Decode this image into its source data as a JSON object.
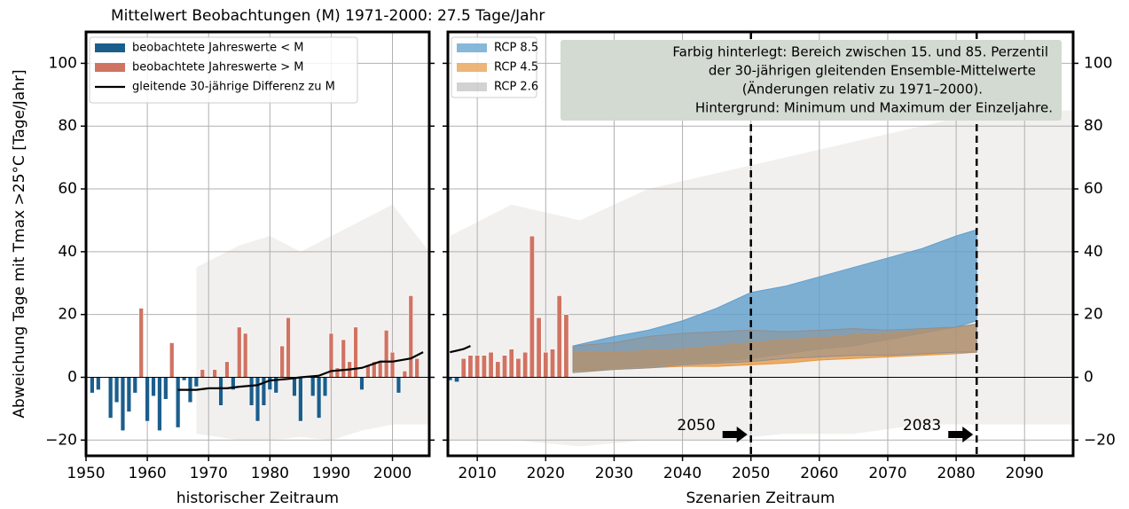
{
  "chart_data": [
    {
      "type": "bar",
      "title": "Mittelwert Beobachtungen (M) 1971-2000: 27.5 Tage/Jahr",
      "ylabel": "Abweichung Tage mit Tmax >25°C [Tage/Jahr]",
      "xlabel": "historischer Zeitraum",
      "x": [
        1951,
        1952,
        1953,
        1954,
        1955,
        1956,
        1957,
        1958,
        1959,
        1960,
        1961,
        1962,
        1963,
        1964,
        1965,
        1966,
        1967,
        1968,
        1969,
        1970,
        1971,
        1972,
        1973,
        1974,
        1975,
        1976,
        1977,
        1978,
        1979,
        1980,
        1981,
        1982,
        1983,
        1984,
        1985,
        1986,
        1987,
        1988,
        1989,
        1990,
        1991,
        1992,
        1993,
        1994,
        1995,
        1996,
        1997,
        1998,
        1999,
        2000,
        2001,
        2002,
        2003,
        2004
      ],
      "values": [
        -5,
        -4,
        0,
        -13,
        -8,
        -17,
        -11,
        -5,
        22,
        -14,
        -6,
        -17,
        -7,
        11,
        -16,
        -1,
        -8,
        -3,
        2.5,
        0,
        2.5,
        -9,
        5,
        -4,
        16,
        14,
        -9,
        -14,
        -9,
        -4,
        -5,
        10,
        19,
        -6,
        -14,
        0,
        -6,
        -13,
        -6,
        14,
        3,
        12,
        5,
        16,
        -4,
        4,
        5,
        5,
        15,
        8,
        -5,
        2,
        26,
        6
      ],
      "below_color": "#1b5e8c",
      "above_color": "#d07362",
      "legend": [
        "beobachtete Jahreswerte < M",
        "beobachtete Jahreswerte > M",
        "gleitende 30-jährige Differenz zu M"
      ],
      "legend_corner": "upper left",
      "line": {
        "color": "#000000",
        "x": [
          1965,
          1968,
          1970,
          1973,
          1975,
          1978,
          1980,
          1983,
          1985,
          1988,
          1990,
          1993,
          1995,
          1998,
          2000,
          2003,
          2005
        ],
        "values": [
          -4,
          -4,
          -3.5,
          -3.5,
          -3,
          -2.5,
          -1,
          -0.5,
          0,
          0.5,
          2,
          2.5,
          3,
          5,
          5,
          6,
          8
        ]
      },
      "background": {
        "color": "#e9e6e3",
        "x": [
          1968,
          1975,
          1980,
          1985,
          1990,
          1995,
          2000,
          2006
        ],
        "lower": [
          -18,
          -20,
          -20,
          -19,
          -20,
          -17,
          -15,
          -15
        ],
        "upper": [
          35,
          42,
          45,
          40,
          45,
          50,
          55,
          40
        ]
      },
      "xlim": [
        1950,
        2006
      ],
      "ylim": [
        -25,
        110
      ],
      "xticks": [
        1950,
        1960,
        1970,
        1980,
        1990,
        2000
      ],
      "yticks": [
        {
          "value": -20,
          "label": "−20"
        },
        0,
        20,
        40,
        60,
        80,
        100
      ],
      "yaxis_side": "left",
      "grid": true
    },
    {
      "type": "band",
      "xlabel": "Szenarien Zeitraum",
      "x": [
        2006,
        2007,
        2008,
        2009,
        2010,
        2011,
        2012,
        2013,
        2014,
        2015,
        2016,
        2017,
        2018,
        2019,
        2020,
        2021,
        2022,
        2023
      ],
      "values": [
        -1,
        -1.5,
        6,
        7,
        7,
        7,
        8,
        5,
        7,
        9,
        6,
        8,
        45,
        19,
        8,
        9,
        26,
        20
      ],
      "below_color": "#1b5e8c",
      "above_color": "#d07362",
      "line": {
        "color": "#000000",
        "x": [
          2006,
          2007,
          2008,
          2009
        ],
        "values": [
          8,
          8.5,
          9,
          10
        ]
      },
      "background": {
        "color": "#e9e6e3",
        "x": [
          2006,
          2015,
          2025,
          2035,
          2045,
          2055,
          2065,
          2075,
          2085,
          2097
        ],
        "lower": [
          -20,
          -20,
          -22,
          -20,
          -20,
          -18,
          -18,
          -15,
          -15,
          -15
        ],
        "upper": [
          45,
          55,
          50,
          60,
          65,
          70,
          75,
          80,
          85,
          85
        ]
      },
      "series": [
        {
          "name": "RCP 8.5",
          "color": "#5f9fcc",
          "x": [
            2024,
            2030,
            2035,
            2040,
            2045,
            2050,
            2055,
            2060,
            2065,
            2070,
            2075,
            2080,
            2083
          ],
          "lower": [
            2,
            3,
            3.5,
            4.5,
            5,
            6,
            7.5,
            9,
            10,
            12,
            14,
            16,
            18
          ],
          "upper": [
            10,
            13,
            15,
            18,
            22,
            27,
            29,
            32,
            35,
            38,
            41,
            45,
            47
          ]
        },
        {
          "name": "RCP 4.5",
          "color": "#e6953f",
          "x": [
            2024,
            2030,
            2035,
            2040,
            2045,
            2050,
            2055,
            2060,
            2065,
            2070,
            2075,
            2080,
            2083
          ],
          "lower": [
            2,
            2.5,
            3,
            3.5,
            3.5,
            4,
            4.5,
            5.5,
            6,
            6.5,
            7,
            7.5,
            8
          ],
          "upper": [
            8,
            8,
            8.5,
            9,
            10,
            11,
            12,
            12.5,
            13.5,
            14,
            15,
            16,
            17
          ]
        },
        {
          "name": "RCP 2.6",
          "color": "#8f8f8f",
          "x": [
            2024,
            2030,
            2035,
            2040,
            2045,
            2050,
            2055,
            2060,
            2065,
            2070,
            2075,
            2080,
            2083
          ],
          "lower": [
            1.5,
            2.5,
            3,
            4,
            4.5,
            5,
            6,
            6.5,
            7,
            7,
            7.5,
            8,
            8
          ],
          "upper": [
            10,
            11,
            13,
            14,
            14.5,
            15,
            14.5,
            15,
            15.5,
            15,
            15.5,
            16,
            17
          ]
        }
      ],
      "legend_corner": "upper left",
      "annotation": [
        "Farbig hinterlegt: Bereich zwischen 15. und 85. Perzentil",
        "der 30-jährigen gleitenden Ensemble-Mittelwerte",
        "(Änderungen relativ zu 1971–2000).",
        "Hintergrund: Minimum und Maximum der Einzeljahre."
      ],
      "markers": [
        {
          "label": "2050",
          "x": 2050
        },
        {
          "label": "2083",
          "x": 2083
        }
      ],
      "xlim": [
        2005.7,
        2097.1
      ],
      "ylim": [
        -25,
        110
      ],
      "xticks": [
        2010,
        2020,
        2030,
        2040,
        2050,
        2060,
        2070,
        2080,
        2090
      ],
      "yticks": [
        {
          "value": -20,
          "label": "−20"
        },
        0,
        20,
        40,
        60,
        80,
        100
      ],
      "yaxis_side": "right",
      "grid": true
    }
  ]
}
